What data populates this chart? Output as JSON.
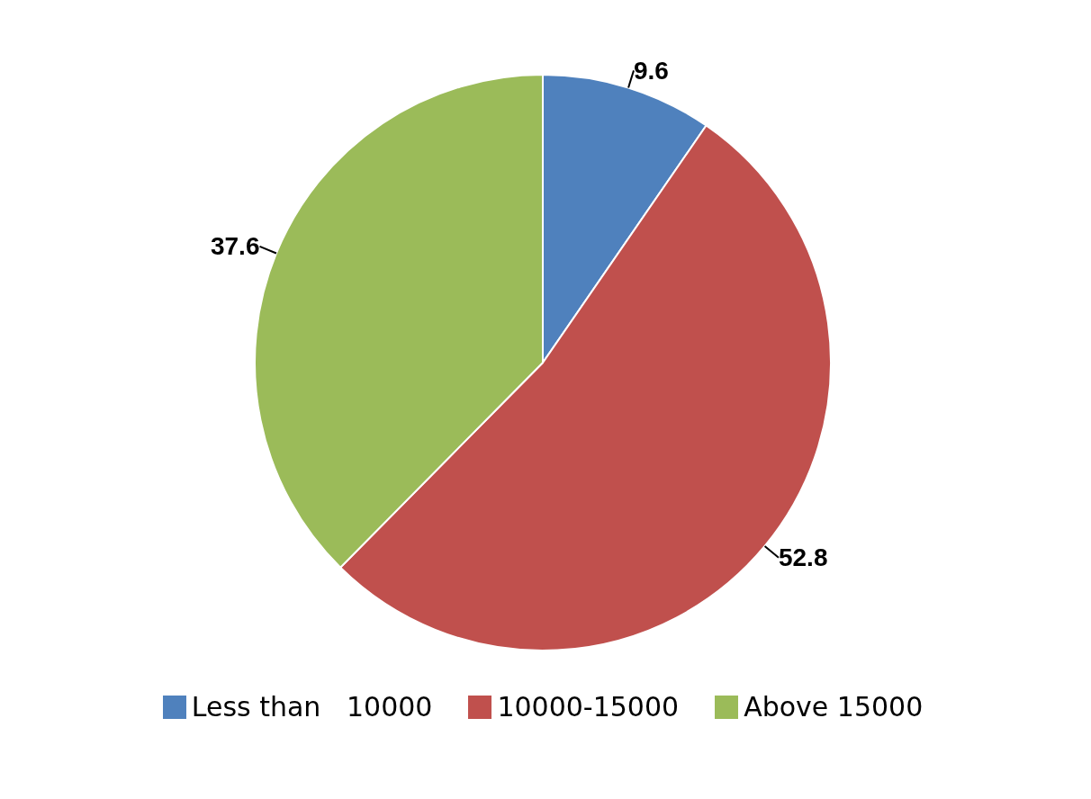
{
  "chart_data": {
    "type": "pie",
    "categories": [
      "Less than   10000",
      "10000-15000",
      "Above 15000"
    ],
    "values": [
      9.6,
      52.8,
      37.6
    ],
    "colors": [
      "#4f81bd",
      "#c0504d",
      "#9bbb59"
    ],
    "data_labels": true,
    "legend": "bottom"
  }
}
